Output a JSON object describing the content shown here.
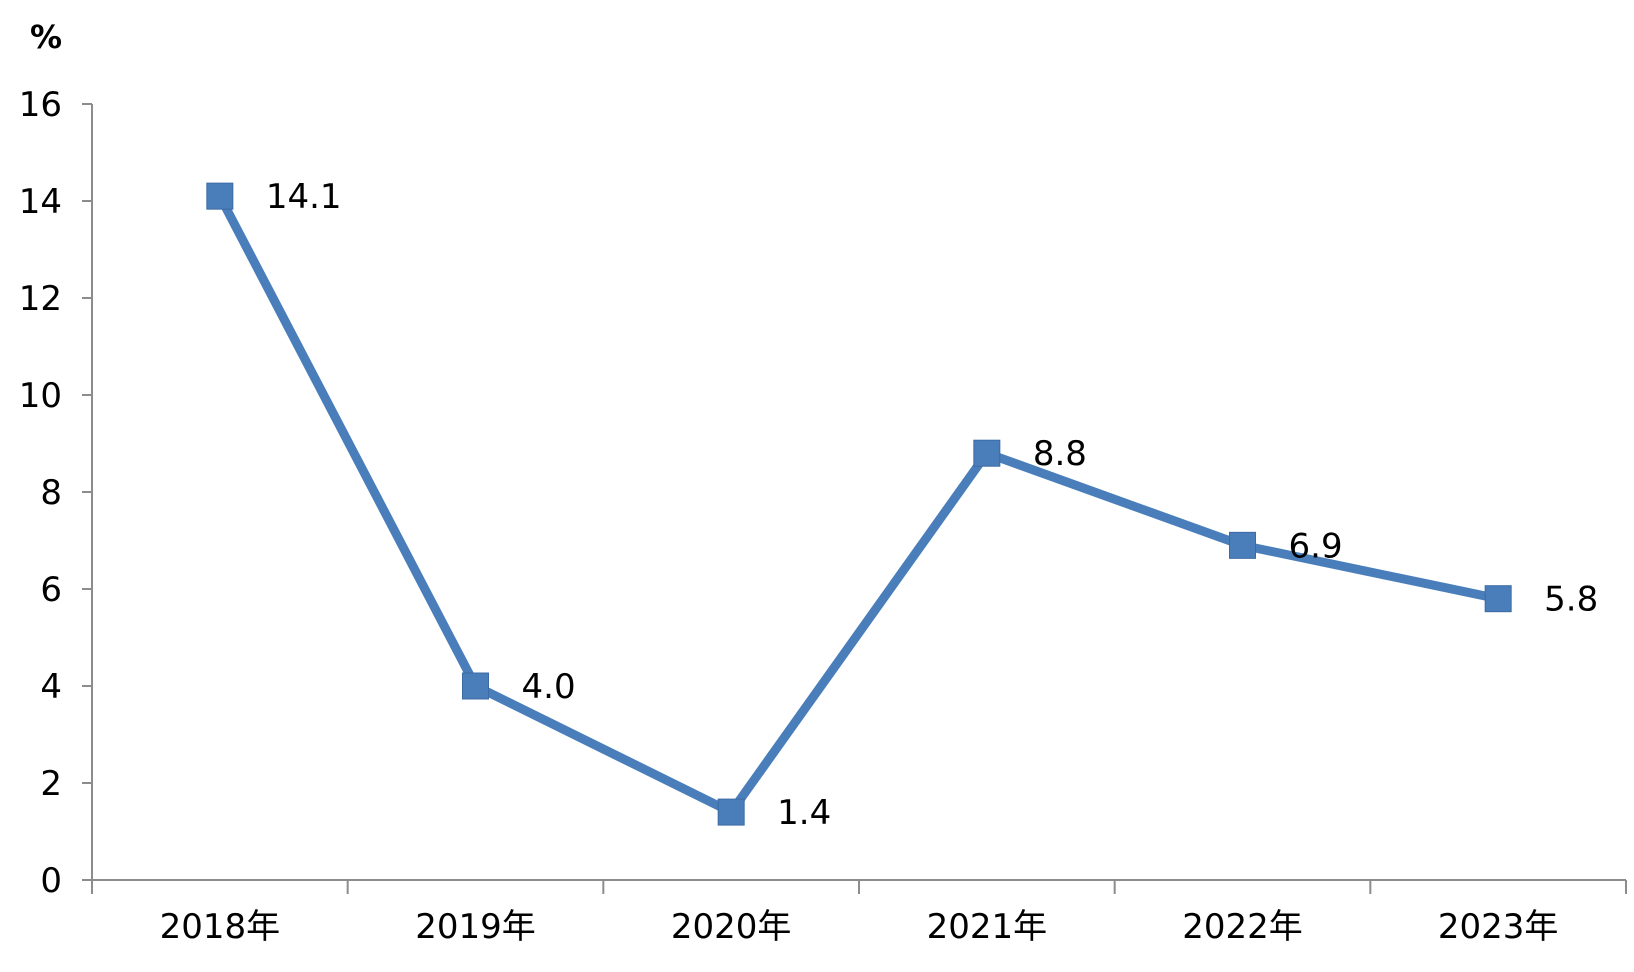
{
  "chart_data": {
    "type": "line",
    "unit": "%",
    "categories": [
      "2018年",
      "2019年",
      "2020年",
      "2021年",
      "2022年",
      "2023年"
    ],
    "series": [
      {
        "values": [
          14.1,
          4.0,
          1.4,
          8.8,
          6.9,
          5.8
        ]
      }
    ],
    "data_labels": [
      "14.1",
      "4.0",
      "1.4",
      "8.8",
      "6.9",
      "5.8"
    ],
    "ylim": [
      0,
      16
    ],
    "yticks": [
      0,
      2,
      4,
      6,
      8,
      10,
      12,
      14,
      16
    ],
    "grid": false,
    "legend": "none",
    "line_color": "#4a7ebb",
    "axis_color": "#8c8c8c"
  }
}
